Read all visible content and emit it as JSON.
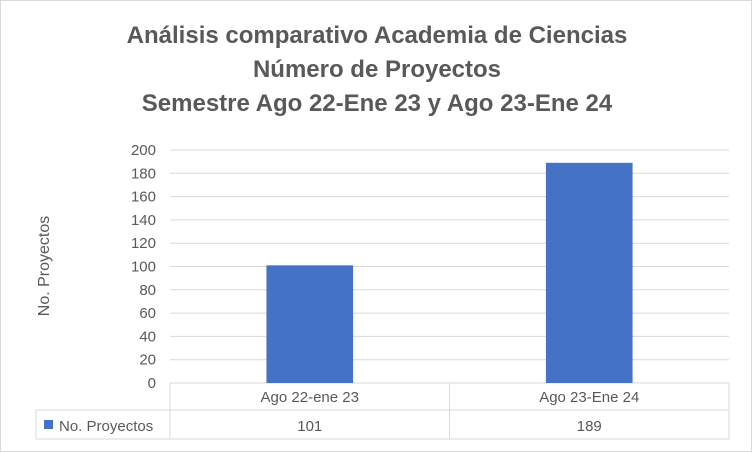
{
  "chart_data": {
    "type": "bar",
    "title_lines": [
      "Análisis comparativo Academia de Ciencias",
      "Número de Proyectos",
      "Semestre Ago 22-Ene 23 y Ago 23-Ene 24"
    ],
    "ylabel": "No. Proyectos",
    "xlabel": "",
    "categories": [
      "Ago 22-ene 23",
      "Ago 23-Ene 24"
    ],
    "series": [
      {
        "name": "No. Proyectos",
        "values": [
          101,
          189
        ],
        "color": "#4472c4"
      }
    ],
    "ylim": [
      0,
      200
    ],
    "yticks": [
      0,
      20,
      40,
      60,
      80,
      100,
      120,
      140,
      160,
      180,
      200
    ],
    "grid": true,
    "data_table": {
      "row_label": "No. Proyectos",
      "values": [
        "101",
        "189"
      ]
    }
  }
}
